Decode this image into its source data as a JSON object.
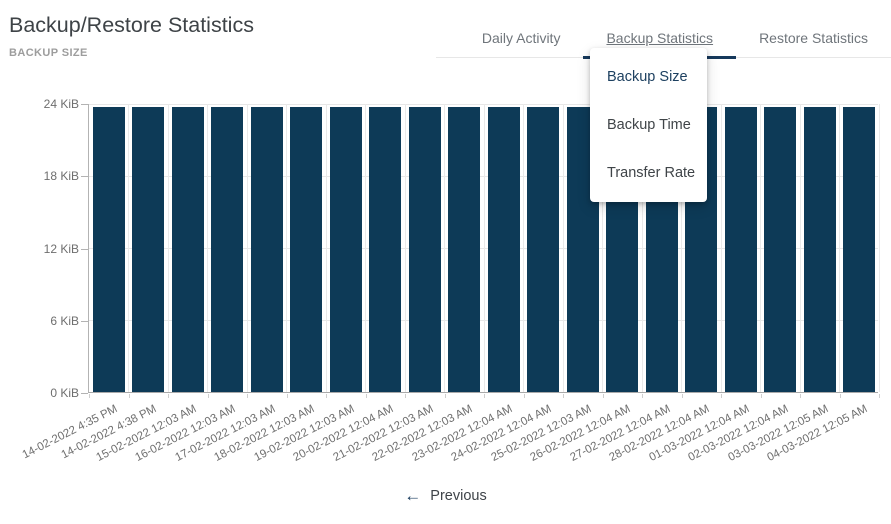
{
  "header": {
    "title": "Backup/Restore Statistics",
    "subtitle": "BACKUP SIZE"
  },
  "tabs": {
    "items": [
      {
        "label": "Daily Activity",
        "active": false
      },
      {
        "label": "Backup Statistics",
        "active": true
      },
      {
        "label": "Restore Statistics",
        "active": false
      }
    ]
  },
  "dropdown": {
    "items": [
      {
        "label": "Backup Size",
        "selected": true
      },
      {
        "label": "Backup Time",
        "selected": false
      },
      {
        "label": "Transfer Rate",
        "selected": false
      }
    ]
  },
  "chart_data": {
    "type": "bar",
    "title": "BACKUP SIZE",
    "xlabel": "",
    "ylabel": "",
    "y_unit": "KiB",
    "ylim": [
      0,
      24
    ],
    "grid": true,
    "legend": false,
    "bar_color": "#0d3a57",
    "y_ticks": {
      "values": [
        0,
        6,
        12,
        18,
        24
      ],
      "labels": [
        "0 KiB",
        "6 KiB",
        "12 KiB",
        "18 KiB",
        "24 KiB"
      ]
    },
    "categories": [
      "14-02-2022 4:35 PM",
      "14-02-2022 4:38 PM",
      "15-02-2022 12:03 AM",
      "16-02-2022 12:03 AM",
      "17-02-2022 12:03 AM",
      "18-02-2022 12:03 AM",
      "19-02-2022 12:03 AM",
      "20-02-2022 12:04 AM",
      "21-02-2022 12:03 AM",
      "22-02-2022 12:03 AM",
      "23-02-2022 12:04 AM",
      "24-02-2022 12:04 AM",
      "25-02-2022 12:03 AM",
      "26-02-2022 12:04 AM",
      "27-02-2022 12:04 AM",
      "28-02-2022 12:04 AM",
      "01-03-2022 12:04 AM",
      "02-03-2022 12:04 AM",
      "03-03-2022 12:05 AM",
      "04-03-2022 12:05 AM"
    ],
    "values": [
      23.7,
      23.7,
      23.7,
      23.7,
      23.7,
      23.7,
      23.7,
      23.7,
      23.7,
      23.7,
      23.7,
      23.7,
      23.7,
      23.7,
      23.7,
      23.7,
      23.7,
      23.7,
      23.7,
      23.7
    ]
  },
  "pagination": {
    "previous_label": "Previous",
    "previous_icon": "arrow-left"
  },
  "colors": {
    "accent": "#16395c",
    "bar": "#0d3a57",
    "selected_item_text": "#1d4060",
    "tab_text": "#6f757b",
    "title_text": "#3e4347",
    "subtitle_text": "#9d9d9d",
    "grid_line": "#e7e7e7",
    "axis_line": "#a9a9a9",
    "label_text": "#6e6e6e"
  }
}
